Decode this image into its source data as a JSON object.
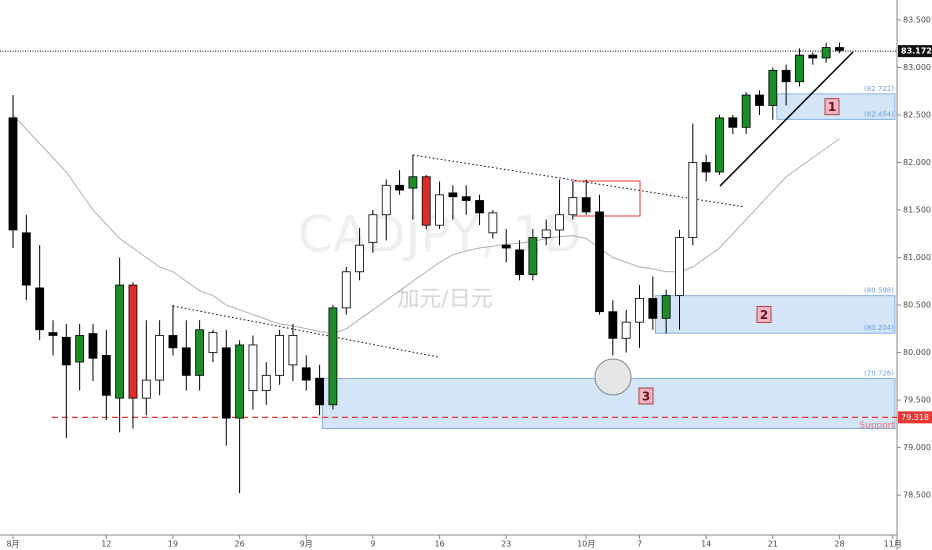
{
  "chart_data": {
    "type": "candlestick",
    "title": "CADJPY, 1D",
    "subtitle": "加元/日元",
    "categories": [
      "8月",
      null,
      null,
      null,
      null,
      null,
      null,
      "12",
      null,
      null,
      null,
      null,
      "19",
      null,
      null,
      null,
      null,
      "26",
      null,
      null,
      null,
      null,
      "9月",
      null,
      null,
      null,
      null,
      "9",
      null,
      null,
      null,
      null,
      "16",
      null,
      null,
      null,
      null,
      "23",
      null,
      null,
      null,
      null,
      null,
      "10月",
      null,
      null,
      null,
      "7",
      null,
      null,
      null,
      null,
      "14",
      null,
      null,
      null,
      null,
      "21",
      null,
      null,
      null,
      null,
      "28",
      null,
      null,
      null,
      "11月"
    ],
    "open": [
      82.47,
      81.26,
      80.68,
      80.21,
      80.16,
      79.9,
      80.2,
      79.97,
      79.52,
      80.71,
      79.52,
      79.71,
      80.18,
      80.05,
      79.76,
      80.0,
      80.05,
      79.31,
      79.6,
      79.6,
      79.76,
      79.87,
      79.84,
      79.73,
      79.45,
      80.47,
      80.85,
      81.16,
      81.45,
      81.76,
      81.73,
      81.85,
      81.34,
      81.68,
      81.64,
      81.6,
      81.26,
      81.13,
      81.08,
      80.82,
      81.21,
      81.29,
      81.45,
      81.63,
      81.48,
      80.43,
      80.15,
      80.32,
      80.57,
      80.36,
      80.6,
      81.21,
      82.0,
      81.9,
      82.47,
      82.37,
      82.71,
      82.6,
      82.97,
      82.85,
      83.13,
      83.1,
      83.21,
      null,
      null,
      null,
      null
    ],
    "high": [
      82.71,
      81.45,
      81.13,
      80.34,
      80.3,
      80.3,
      80.3,
      80.24,
      81.0,
      80.74,
      80.34,
      80.34,
      80.5,
      80.34,
      80.34,
      80.24,
      80.24,
      80.13,
      80.18,
      79.9,
      80.24,
      80.3,
      79.97,
      79.87,
      80.5,
      80.9,
      81.31,
      81.5,
      81.82,
      81.92,
      82.08,
      81.87,
      81.8,
      81.76,
      81.76,
      81.66,
      81.5,
      81.3,
      81.18,
      81.3,
      81.4,
      81.82,
      81.8,
      81.82,
      81.66,
      80.55,
      80.45,
      80.71,
      80.8,
      80.66,
      81.29,
      82.41,
      82.08,
      82.5,
      82.5,
      82.74,
      82.76,
      83.0,
      83.03,
      83.2,
      83.16,
      83.26,
      83.26,
      null,
      null,
      null,
      null
    ],
    "low": [
      81.1,
      80.55,
      80.13,
      79.97,
      79.1,
      79.6,
      79.7,
      79.29,
      79.16,
      79.2,
      79.34,
      79.55,
      79.97,
      79.6,
      79.6,
      79.9,
      79.02,
      78.52,
      79.4,
      79.45,
      79.66,
      79.7,
      79.6,
      79.34,
      79.4,
      80.4,
      80.76,
      81.05,
      81.18,
      81.66,
      81.4,
      81.3,
      81.3,
      81.4,
      81.45,
      81.34,
      81.2,
      80.95,
      80.76,
      80.76,
      81.13,
      81.13,
      81.4,
      81.45,
      80.4,
      79.97,
      80.0,
      80.05,
      80.24,
      80.2,
      80.24,
      81.13,
      81.8,
      81.87,
      82.3,
      82.3,
      82.5,
      82.45,
      82.6,
      82.8,
      83.03,
      83.05,
      83.15,
      null,
      null,
      null,
      null
    ],
    "close": [
      81.29,
      80.71,
      80.24,
      80.18,
      79.87,
      80.18,
      79.94,
      79.55,
      80.71,
      79.52,
      79.71,
      80.18,
      80.05,
      79.76,
      80.24,
      80.21,
      79.31,
      80.08,
      80.08,
      79.76,
      80.18,
      80.18,
      79.71,
      79.45,
      80.47,
      80.85,
      81.13,
      81.45,
      81.76,
      81.71,
      81.85,
      81.34,
      81.66,
      81.64,
      81.6,
      81.47,
      81.47,
      81.1,
      80.82,
      81.21,
      81.29,
      81.45,
      81.63,
      81.48,
      80.43,
      80.15,
      80.32,
      80.57,
      80.36,
      80.6,
      81.21,
      82.0,
      81.9,
      82.47,
      82.37,
      82.71,
      82.6,
      82.97,
      82.85,
      83.13,
      83.1,
      83.21,
      83.18,
      null,
      null,
      null,
      null
    ],
    "body_colors": [
      "#000000",
      "#000000",
      "#000000",
      "#000000",
      "#000000",
      "#1b8c28",
      "#000000",
      "#000000",
      "#1b8c28",
      "#e02b2b",
      "#ffffff",
      "#ffffff",
      "#000000",
      "#000000",
      "#1b8c28",
      "#ffffff",
      "#000000",
      "#1b8c28",
      "#ffffff",
      "#ffffff",
      "#ffffff",
      "#ffffff",
      "#000000",
      "#000000",
      "#1b8c28",
      "#ffffff",
      "#ffffff",
      "#ffffff",
      "#ffffff",
      "#000000",
      "#1b8c28",
      "#e02b2b",
      "#ffffff",
      "#000000",
      "#000000",
      "#000000",
      "#ffffff",
      "#000000",
      "#000000",
      "#1b8c28",
      "#ffffff",
      "#ffffff",
      "#ffffff",
      "#000000",
      "#000000",
      "#000000",
      "#ffffff",
      "#ffffff",
      "#000000",
      "#1b8c28",
      "#ffffff",
      "#ffffff",
      "#000000",
      "#1b8c28",
      "#000000",
      "#1b8c28",
      "#000000",
      "#1b8c28",
      "#000000",
      "#1b8c28",
      "#000000",
      "#1b8c28",
      "#000000",
      null,
      null,
      null,
      null
    ],
    "ma": {
      "color": "#b0b0b0",
      "values": [
        82.5,
        82.35,
        82.2,
        82.05,
        81.9,
        81.7,
        81.5,
        81.35,
        81.2,
        81.1,
        81.0,
        80.9,
        80.85,
        80.75,
        80.65,
        80.6,
        80.5,
        80.45,
        80.4,
        80.35,
        80.3,
        80.28,
        80.25,
        80.22,
        80.2,
        80.25,
        80.35,
        80.45,
        80.55,
        80.65,
        80.75,
        80.85,
        80.95,
        81.03,
        81.07,
        81.1,
        81.12,
        81.14,
        81.15,
        81.17,
        81.2,
        81.22,
        81.23,
        81.2,
        81.1,
        81.0,
        80.95,
        80.9,
        80.88,
        80.85,
        80.85,
        80.9,
        81.0,
        81.1,
        81.25,
        81.4,
        81.55,
        81.7,
        81.85,
        81.95,
        82.05,
        82.15,
        82.25,
        null,
        null,
        null,
        null
      ]
    },
    "ylim": [
      78.08,
      83.71
    ],
    "yticks": [
      {
        "value": 78.5,
        "label": "78.500"
      },
      {
        "value": 79,
        "label": "79.000"
      },
      {
        "value": 79.5,
        "label": "79.500"
      },
      {
        "value": 80,
        "label": "80.000"
      },
      {
        "value": 80.5,
        "label": "80.500"
      },
      {
        "value": 81,
        "label": "81.000"
      },
      {
        "value": 81.5,
        "label": "81.500"
      },
      {
        "value": 82,
        "label": "82.000"
      },
      {
        "value": 82.5,
        "label": "82.500"
      },
      {
        "value": 83,
        "label": "83.000"
      },
      {
        "value": 83.5,
        "label": "83.500"
      }
    ],
    "last_price": 83.172,
    "support": {
      "value": 79.318,
      "text": "Support",
      "color": "#e53935"
    },
    "zones": [
      {
        "name": "1",
        "high": {
          "value": 82.722,
          "label": "(82.722)"
        },
        "low": {
          "value": 82.454,
          "label": "(82.454)"
        }
      },
      {
        "name": "2",
        "high": {
          "value": 80.598,
          "label": "(80.598)"
        },
        "low": {
          "value": 80.204,
          "label": "(80.204)"
        }
      },
      {
        "name": "3",
        "high": {
          "value": 79.726,
          "label": "(79.726)"
        },
        "low": 79.2
      }
    ]
  }
}
